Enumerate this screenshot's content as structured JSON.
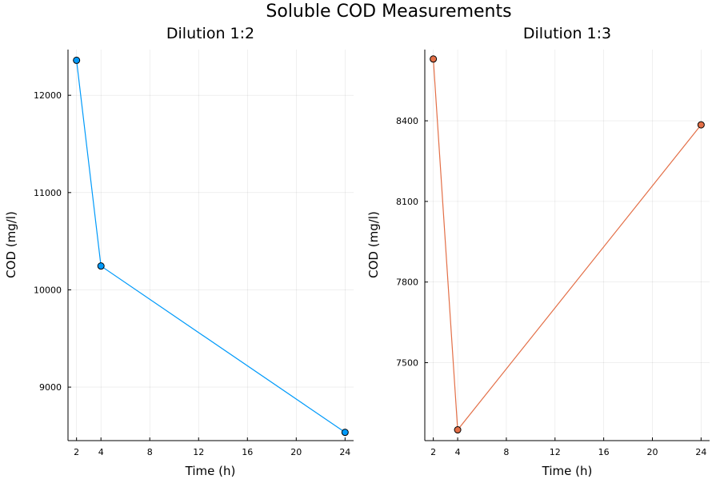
{
  "figure": {
    "title": "Soluble COD Measurements"
  },
  "chart_data": [
    {
      "type": "line",
      "title": "Dilution 1:2",
      "xlabel": "Time (h)",
      "ylabel": "COD (mg/l)",
      "x": [
        2,
        4,
        24
      ],
      "series": [
        {
          "values": [
            12360,
            10245,
            8535
          ],
          "color": "#009AFA"
        }
      ],
      "xticks": [
        2,
        4,
        8,
        12,
        16,
        20,
        24
      ],
      "yticks": [
        9000,
        10000,
        11000,
        12000
      ],
      "xlim": [
        1.3,
        24.7
      ],
      "ylim": [
        8450,
        12470
      ],
      "grid": true,
      "legend": "none"
    },
    {
      "type": "line",
      "title": "Dilution 1:3",
      "xlabel": "Time (h)",
      "ylabel": "COD (mg/l)",
      "x": [
        2,
        4,
        24
      ],
      "series": [
        {
          "values": [
            8630,
            7250,
            8385
          ],
          "color": "#E36F47"
        }
      ],
      "xticks": [
        2,
        4,
        8,
        12,
        16,
        20,
        24
      ],
      "yticks": [
        7500,
        7800,
        8100,
        8400
      ],
      "xlim": [
        1.3,
        24.7
      ],
      "ylim": [
        7210,
        8665
      ],
      "grid": true,
      "legend": "none"
    }
  ]
}
